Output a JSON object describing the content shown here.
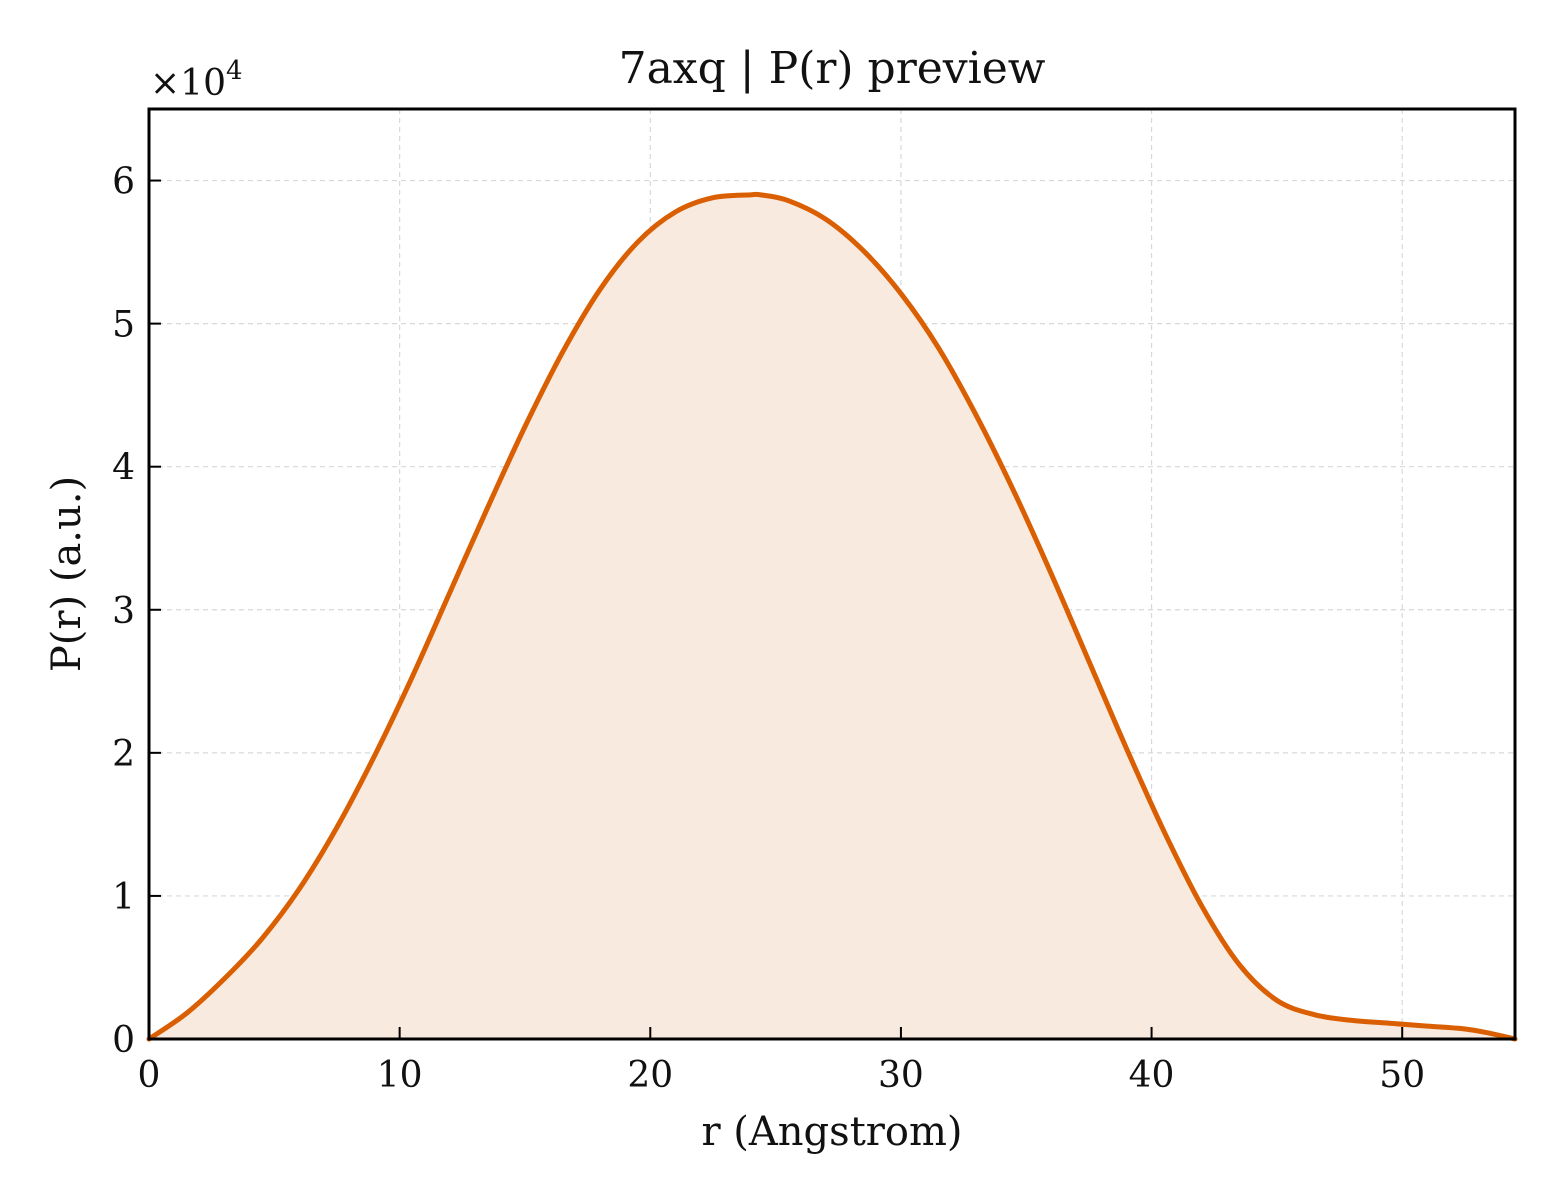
{
  "chart_data": {
    "type": "area",
    "title": "7axq | P(r) preview",
    "xlabel": "r (Angstrom)",
    "ylabel": "P(r) (a.u.)",
    "y_multiplier_label": "×10",
    "y_multiplier_exponent": "4",
    "xlim": [
      0,
      54.5
    ],
    "ylim": [
      0,
      65000
    ],
    "xticks": [
      0,
      10,
      20,
      30,
      40,
      50
    ],
    "yticks": [
      0,
      10000,
      20000,
      30000,
      40000,
      50000,
      60000
    ],
    "xtick_labels": [
      "0",
      "10",
      "20",
      "30",
      "40",
      "50"
    ],
    "ytick_labels": [
      "0",
      "1",
      "2",
      "3",
      "4",
      "5",
      "6"
    ],
    "grid": true,
    "line_color": "#d95f02",
    "fill_color": "#f8eadf",
    "series": [
      {
        "x": [
          0,
          1.5,
          3,
          4.5,
          6,
          7.5,
          9,
          10.5,
          12,
          13.5,
          15,
          16.5,
          18,
          19.5,
          21,
          22.5,
          24,
          24.4,
          25.5,
          27,
          28.5,
          30,
          31.5,
          33,
          34.5,
          36,
          37.5,
          39,
          40.5,
          42,
          43.5,
          45,
          46.5,
          48,
          49.5,
          51,
          52.5,
          53.5,
          54.5
        ],
        "y": [
          0,
          1800,
          4200,
          7000,
          10500,
          14800,
          19800,
          25300,
          31200,
          37100,
          42800,
          48000,
          52400,
          55700,
          57800,
          58800,
          59000,
          59000,
          58600,
          57300,
          55100,
          52100,
          48300,
          43600,
          38300,
          32500,
          26400,
          20300,
          14500,
          9300,
          5200,
          2700,
          1700,
          1300,
          1100,
          900,
          700,
          400,
          0
        ]
      }
    ]
  }
}
